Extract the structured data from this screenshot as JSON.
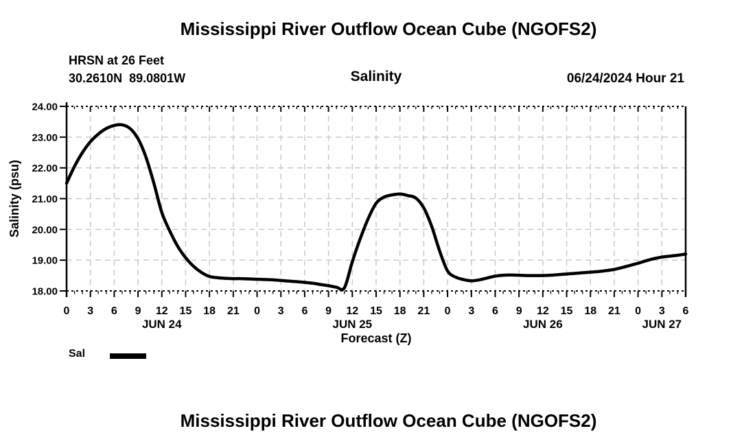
{
  "page": {
    "top_title": "Mississippi River Outflow Ocean Cube (NGOFS2)",
    "bottom_title": "Mississippi River Outflow Ocean Cube (NGOFS2)"
  },
  "header": {
    "station_line1": "HRSN at 26 Feet",
    "station_line2": "30.2610N  89.0801W",
    "variable": "Salinity",
    "datetime": "06/24/2024 Hour 21"
  },
  "chart_data": {
    "type": "line",
    "title": "Salinity",
    "xlabel": "Forecast (Z)",
    "ylabel": "Salinity (psu)",
    "ylim": [
      18,
      24
    ],
    "ytick_step": 1,
    "ytick_labels": [
      "18.00",
      "19.00",
      "20.00",
      "21.00",
      "22.00",
      "23.00",
      "24.00"
    ],
    "x_hours_span": 78,
    "xtick_interval_hours": 3,
    "xtick_minor_interval_hours": 1,
    "xtick_labels": [
      "0",
      "3",
      "6",
      "9",
      "12",
      "15",
      "18",
      "21",
      "0",
      "3",
      "6",
      "9",
      "12",
      "15",
      "18",
      "21",
      "0",
      "3",
      "6",
      "9",
      "12",
      "15",
      "18",
      "21",
      "0",
      "3",
      "6"
    ],
    "date_labels": [
      {
        "label": "JUN 24",
        "hour": 12
      },
      {
        "label": "JUN 25",
        "hour": 36
      },
      {
        "label": "JUN 26",
        "hour": 60
      },
      {
        "label": "JUN 27",
        "hour": 75
      }
    ],
    "grid": true,
    "legend_position": "bottom-left",
    "legend": [
      {
        "name": "Sal",
        "color": "#000000"
      }
    ],
    "colors": {
      "line": "#000000",
      "grid": "#c9c9c9",
      "axis": "#000000"
    },
    "series": [
      {
        "name": "Sal",
        "x": [
          0,
          1,
          2,
          3,
          4,
          5,
          6,
          7,
          8,
          9,
          10,
          11,
          12,
          13,
          14,
          15,
          16,
          17,
          18,
          19,
          20,
          21,
          22,
          23,
          24,
          25,
          26,
          27,
          28,
          29,
          30,
          31,
          32,
          33,
          34,
          35,
          36,
          37,
          38,
          39,
          40,
          41,
          42,
          43,
          44,
          45,
          46,
          47,
          48,
          49,
          50,
          51,
          52,
          53,
          54,
          55,
          56,
          57,
          58,
          59,
          60,
          61,
          62,
          63,
          64,
          65,
          66,
          67,
          68,
          69,
          70,
          71,
          72,
          73,
          74,
          75,
          76,
          77,
          78
        ],
        "values": [
          21.5,
          22.05,
          22.5,
          22.85,
          23.1,
          23.28,
          23.38,
          23.4,
          23.28,
          22.95,
          22.35,
          21.5,
          20.55,
          19.95,
          19.45,
          19.08,
          18.8,
          18.6,
          18.47,
          18.43,
          18.41,
          18.4,
          18.4,
          18.39,
          18.38,
          18.37,
          18.36,
          18.34,
          18.32,
          18.3,
          18.28,
          18.25,
          18.21,
          18.17,
          18.12,
          18.1,
          18.95,
          19.7,
          20.35,
          20.85,
          21.05,
          21.12,
          21.15,
          21.1,
          21.02,
          20.7,
          20.1,
          19.3,
          18.65,
          18.45,
          18.37,
          18.33,
          18.36,
          18.42,
          18.48,
          18.51,
          18.52,
          18.51,
          18.5,
          18.5,
          18.5,
          18.51,
          18.53,
          18.55,
          18.57,
          18.59,
          18.61,
          18.63,
          18.66,
          18.7,
          18.76,
          18.83,
          18.9,
          18.98,
          19.05,
          19.1,
          19.13,
          19.16,
          19.2
        ]
      }
    ]
  }
}
